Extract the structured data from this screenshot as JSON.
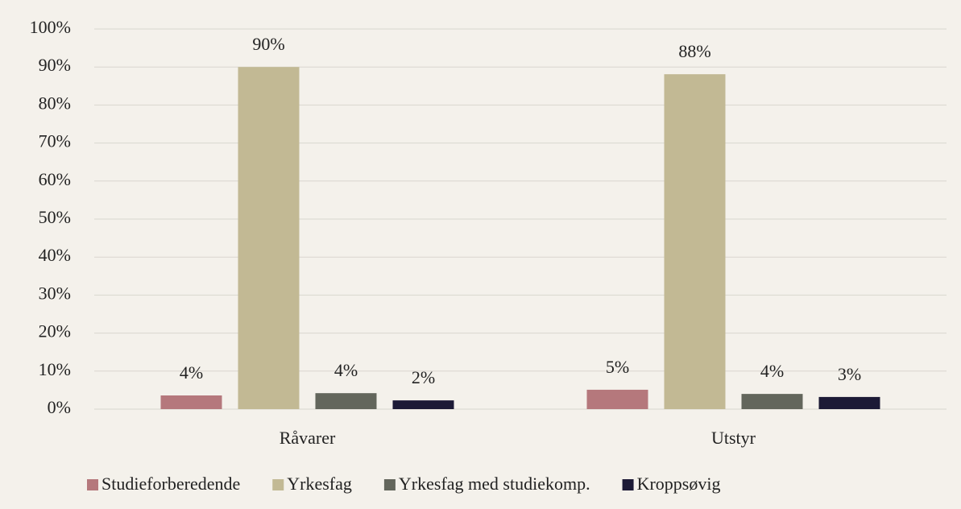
{
  "chart_data": {
    "type": "bar",
    "categories": [
      "Råvarer",
      "Utstyr"
    ],
    "series": [
      {
        "name": "Studieforberedende",
        "color": "#b5787c",
        "values": [
          3.6,
          5.1
        ],
        "value_labels": [
          "4%",
          "5%"
        ]
      },
      {
        "name": "Yrkesfag",
        "color": "#c2b994",
        "values": [
          90,
          88.1
        ],
        "value_labels": [
          "90%",
          "88%"
        ]
      },
      {
        "name": "Yrkesfag med studiekomp.",
        "color": "#63665c",
        "values": [
          4.2,
          4.0
        ],
        "value_labels": [
          "4%",
          "4%"
        ]
      },
      {
        "name": "Kroppsøvig",
        "color": "#1c1a36",
        "values": [
          2.3,
          3.2
        ],
        "value_labels": [
          "2%",
          "3%"
        ]
      }
    ],
    "ylim": [
      0,
      100
    ],
    "yticks": [
      {
        "value": 0,
        "label": "0%"
      },
      {
        "value": 10,
        "label": "10%"
      },
      {
        "value": 20,
        "label": "20%"
      },
      {
        "value": 30,
        "label": "30%"
      },
      {
        "value": 40,
        "label": "40%"
      },
      {
        "value": 50,
        "label": "50%"
      },
      {
        "value": 60,
        "label": "60%"
      },
      {
        "value": 70,
        "label": "70%"
      },
      {
        "value": 80,
        "label": "80%"
      },
      {
        "value": 90,
        "label": "90%"
      },
      {
        "value": 100,
        "label": "100%"
      }
    ],
    "grid": true,
    "legend": "bottom"
  }
}
